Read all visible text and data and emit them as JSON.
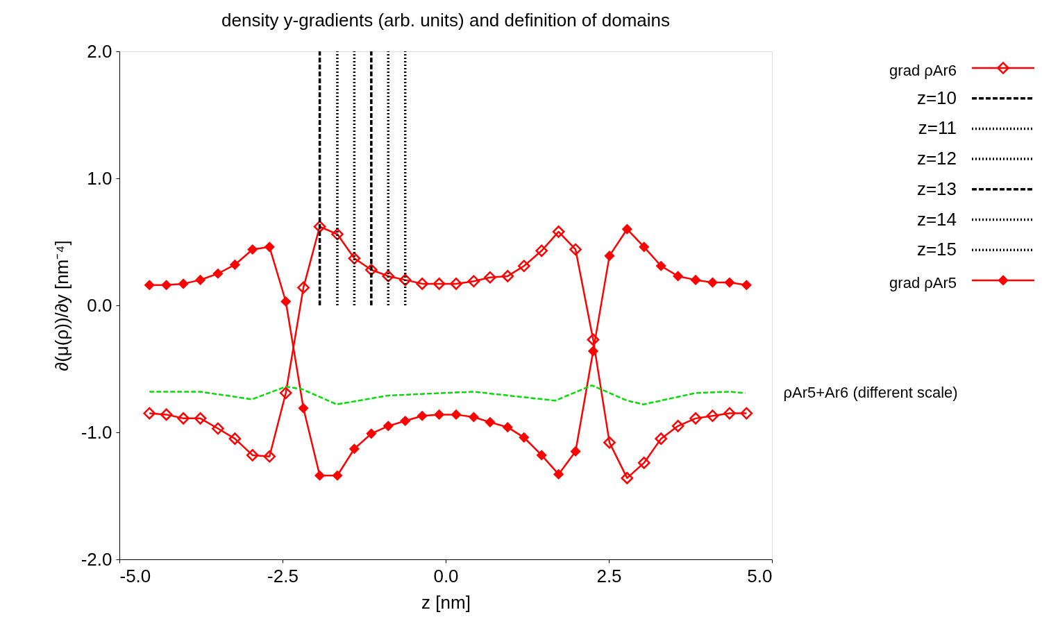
{
  "chart_data": {
    "type": "line",
    "title": "density y-gradients (arb. units) and definition of domains",
    "xlabel": "z [nm]",
    "ylabel": "∂(μ(ρ))/∂y [nm⁻⁴]",
    "xlim": [
      -5,
      5
    ],
    "ylim": [
      -2,
      2
    ],
    "xticks": [
      {
        "value": -5,
        "label": "-5.0"
      },
      {
        "value": -2.5,
        "label": "-2.5"
      },
      {
        "value": 0,
        "label": "0.0"
      },
      {
        "value": 2.5,
        "label": "2.5"
      },
      {
        "value": 5,
        "label": "5.0"
      }
    ],
    "yticks": [
      {
        "value": -2,
        "label": "-2.0"
      },
      {
        "value": -1,
        "label": "-1.0"
      },
      {
        "value": 0,
        "label": "0.0"
      },
      {
        "value": 1,
        "label": "1.0"
      },
      {
        "value": 2,
        "label": "2.0"
      }
    ],
    "grid": false,
    "legend": "top right",
    "x": [
      -4.54,
      -4.28,
      -4.02,
      -3.76,
      -3.49,
      -3.23,
      -2.96,
      -2.7,
      -2.45,
      -2.18,
      -1.93,
      -1.66,
      -1.4,
      -1.14,
      -0.88,
      -0.62,
      -0.36,
      -0.1,
      0.16,
      0.43,
      0.68,
      0.95,
      1.2,
      1.47,
      1.73,
      1.99,
      2.26,
      2.51,
      2.78,
      3.04,
      3.3,
      3.56,
      3.83,
      4.09,
      4.35,
      4.61
    ],
    "series": [
      {
        "name": "grad ρAr6",
        "color": "#ff0000",
        "marker": "diamond",
        "line_style": "solid",
        "values": [
          -0.85,
          -0.86,
          -0.89,
          -0.89,
          -0.97,
          -1.05,
          -1.18,
          -1.19,
          -0.69,
          0.14,
          0.62,
          0.56,
          0.37,
          0.28,
          0.23,
          0.2,
          0.17,
          0.17,
          0.17,
          0.19,
          0.22,
          0.23,
          0.31,
          0.43,
          0.58,
          0.44,
          -0.27,
          -1.08,
          -1.36,
          -1.24,
          -1.05,
          -0.95,
          -0.89,
          -0.87,
          -0.85,
          -0.85
        ]
      },
      {
        "name": "z=10",
        "color": "#000000",
        "line_style": "dashed",
        "x": [
          -1.93,
          -1.93
        ],
        "values": [
          0,
          2
        ]
      },
      {
        "name": "z=11",
        "color": "#000000",
        "line_style": "dotted",
        "x": [
          -1.66,
          -1.66
        ],
        "values": [
          0,
          2
        ]
      },
      {
        "name": "z=12",
        "color": "#000000",
        "line_style": "dotted",
        "x": [
          -1.4,
          -1.4
        ],
        "values": [
          0,
          2
        ]
      },
      {
        "name": "z=13",
        "color": "#000000",
        "line_style": "dashed",
        "x": [
          -1.14,
          -1.14
        ],
        "values": [
          0,
          2
        ]
      },
      {
        "name": "z=14",
        "color": "#000000",
        "line_style": "dotted",
        "x": [
          -0.88,
          -0.88
        ],
        "values": [
          0,
          2
        ]
      },
      {
        "name": "z=15",
        "color": "#000000",
        "line_style": "dotted",
        "x": [
          -0.62,
          -0.62
        ],
        "values": [
          0,
          2
        ]
      },
      {
        "name": "grad ρAr5",
        "color": "#ff0000",
        "marker": "diamond",
        "line_style": "solid",
        "values": [
          0.16,
          0.16,
          0.17,
          0.2,
          0.25,
          0.32,
          0.44,
          0.46,
          0.03,
          -0.81,
          -1.34,
          -1.34,
          -1.13,
          -1.01,
          -0.95,
          -0.91,
          -0.87,
          -0.86,
          -0.86,
          -0.88,
          -0.92,
          -0.96,
          -1.04,
          -1.18,
          -1.33,
          -1.15,
          -0.36,
          0.39,
          0.6,
          0.46,
          0.31,
          0.23,
          0.2,
          0.18,
          0.18,
          0.16
        ]
      },
      {
        "color": "#00dd00",
        "line_style": "dashed",
        "x": [
          -4.54,
          -3.76,
          -2.97,
          -2.45,
          -2.2,
          -1.67,
          -0.88,
          -0.03,
          0.43,
          1.68,
          2.24,
          2.78,
          3.03,
          3.83,
          4.35,
          4.59
        ],
        "values": [
          -0.68,
          -0.68,
          -0.74,
          -0.64,
          -0.66,
          -0.78,
          -0.71,
          -0.69,
          -0.68,
          -0.75,
          -0.63,
          -0.75,
          -0.78,
          -0.69,
          -0.68,
          -0.69
        ]
      }
    ],
    "annotations": [
      {
        "text": "ρAr5+Ar6 (different scale)",
        "x": 4.59,
        "y": -0.69
      }
    ]
  }
}
